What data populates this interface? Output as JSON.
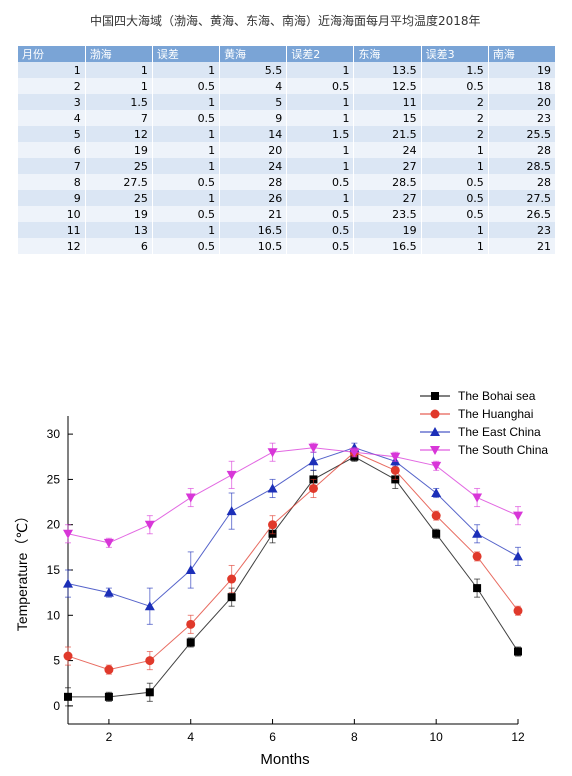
{
  "document_title": "中国四大海域（渤海、黄海、东海、南海）近海海面每月平均温度2018年",
  "table": {
    "headers": [
      "月份",
      "渤海",
      "误差",
      "黄海",
      "误差2",
      "东海",
      "误差3",
      "南海"
    ],
    "rows": [
      [
        "1",
        "1",
        "1",
        "5.5",
        "1",
        "13.5",
        "1.5",
        "19"
      ],
      [
        "2",
        "1",
        "0.5",
        "4",
        "0.5",
        "12.5",
        "0.5",
        "18"
      ],
      [
        "3",
        "1.5",
        "1",
        "5",
        "1",
        "11",
        "2",
        "20"
      ],
      [
        "4",
        "7",
        "0.5",
        "9",
        "1",
        "15",
        "2",
        "23"
      ],
      [
        "5",
        "12",
        "1",
        "14",
        "1.5",
        "21.5",
        "2",
        "25.5"
      ],
      [
        "6",
        "19",
        "1",
        "20",
        "1",
        "24",
        "1",
        "28"
      ],
      [
        "7",
        "25",
        "1",
        "24",
        "1",
        "27",
        "1",
        "28.5"
      ],
      [
        "8",
        "27.5",
        "0.5",
        "28",
        "0.5",
        "28.5",
        "0.5",
        "28"
      ],
      [
        "9",
        "25",
        "1",
        "26",
        "1",
        "27",
        "0.5",
        "27.5"
      ],
      [
        "10",
        "19",
        "0.5",
        "21",
        "0.5",
        "23.5",
        "0.5",
        "26.5"
      ],
      [
        "11",
        "13",
        "1",
        "16.5",
        "0.5",
        "19",
        "1",
        "23"
      ],
      [
        "12",
        "6",
        "0.5",
        "10.5",
        "0.5",
        "16.5",
        "1",
        "21"
      ]
    ]
  },
  "chart_data": {
    "type": "line",
    "title": "",
    "xlabel": "Months",
    "ylabel": "Temperature（℃）",
    "xlim": [
      1,
      12
    ],
    "ylim": [
      -2,
      32
    ],
    "xticks": [
      2,
      4,
      6,
      8,
      10,
      12
    ],
    "yticks": [
      0,
      5,
      10,
      15,
      20,
      25,
      30
    ],
    "grid": false,
    "legend_position": "top-right",
    "x": [
      1,
      2,
      3,
      4,
      5,
      6,
      7,
      8,
      9,
      10,
      11,
      12
    ],
    "series": [
      {
        "name": "The Bohai sea",
        "marker": "square",
        "color": "#000000",
        "values": [
          1,
          1,
          1.5,
          7,
          12,
          19,
          25,
          27.5,
          25,
          19,
          13,
          6
        ],
        "errors": [
          1,
          0.5,
          1,
          0.5,
          1,
          1,
          1,
          0.5,
          1,
          0.5,
          1,
          0.5
        ]
      },
      {
        "name": "The Huanghai",
        "marker": "circle",
        "color": "#e0392b",
        "values": [
          5.5,
          4,
          5,
          9,
          14,
          20,
          24,
          28,
          26,
          21,
          16.5,
          10.5
        ],
        "errors": [
          1,
          0.5,
          1,
          1,
          1.5,
          1,
          1,
          0.5,
          1,
          0.5,
          0.5,
          0.5
        ]
      },
      {
        "name": "The East China",
        "marker": "triangle-up",
        "color": "#1c2fb8",
        "values": [
          13.5,
          12.5,
          11,
          15,
          21.5,
          24,
          27,
          28.5,
          27,
          23.5,
          19,
          16.5
        ],
        "errors": [
          1.5,
          0.5,
          2,
          2,
          2,
          1,
          1,
          0.5,
          0.5,
          0.5,
          1,
          1
        ]
      },
      {
        "name": "The South China",
        "marker": "triangle-down",
        "color": "#d836d8",
        "values": [
          19,
          18,
          20,
          23,
          25.5,
          28,
          28.5,
          28,
          27.5,
          26.5,
          23,
          21
        ],
        "errors": [
          1,
          0.5,
          1,
          1,
          1.5,
          1,
          0.5,
          0.5,
          0.5,
          0.5,
          1,
          1
        ]
      }
    ]
  }
}
